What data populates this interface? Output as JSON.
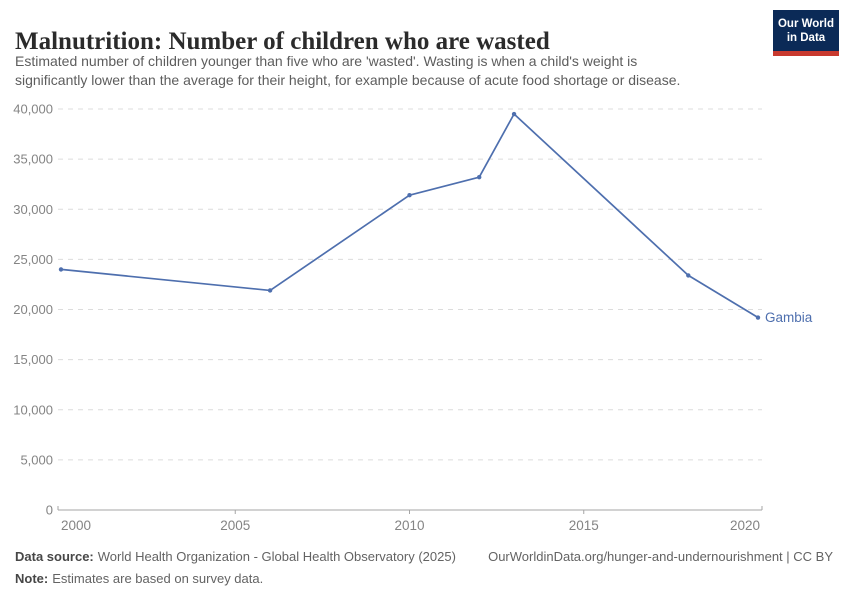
{
  "header": {
    "subtitle_lines": [
      "Estimated number of children younger than five who are 'wasted'. Wasting is when a child's weight is",
      "significantly lower than the average for their height, for example because of acute food shortage or disease."
    ]
  },
  "logo": {
    "line1": "Our World",
    "line2": "in Data",
    "bg_color": "#0b2a57",
    "accent_color": "#c8392e"
  },
  "chart_data": {
    "type": "line",
    "title": "Malnutrition: Number of children who are wasted",
    "subtitle": "Estimated number of children younger than five who are 'wasted'. Wasting is when a child's weight is significantly lower than the average for their height, for example because of acute food shortage or disease.",
    "xlabel": "",
    "ylabel": "",
    "xlim": [
      2000,
      2020
    ],
    "ylim": [
      0,
      40000
    ],
    "x_ticks": [
      2000,
      2005,
      2010,
      2015,
      2020
    ],
    "y_ticks": [
      0,
      5000,
      10000,
      15000,
      20000,
      25000,
      30000,
      35000,
      40000
    ],
    "grid": "horizontal-dashed",
    "legend": "inline-end-label",
    "series": [
      {
        "name": "Gambia",
        "color": "#4e6fae",
        "x": [
          2000,
          2006,
          2010,
          2012,
          2013,
          2018,
          2020
        ],
        "values": [
          24000,
          21900,
          31400,
          33200,
          39500,
          23400,
          19200
        ]
      }
    ]
  },
  "footer": {
    "data_source_label": "Data source:",
    "data_source_value": "World Health Organization - Global Health Observatory (2025)",
    "note_label": "Note:",
    "note_value": "Estimates are based on survey data.",
    "attribution": "OurWorldinData.org/hunger-and-undernourishment | CC BY"
  },
  "colors": {
    "line": "#4e6fae",
    "grid": "#dcdcdc",
    "axis": "#a5a5a5",
    "tick_label": "#848484",
    "title": "#2b2b2b",
    "subtitle": "#5d5d5d"
  }
}
